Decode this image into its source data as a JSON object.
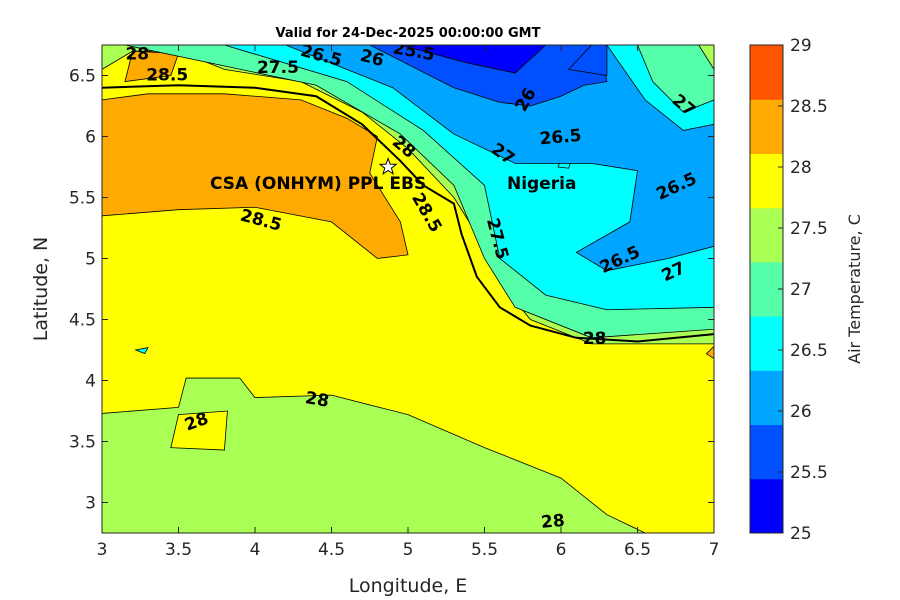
{
  "chart_data": {
    "type": "heatmap",
    "subtype": "filled-contour-map",
    "title": "Valid for 24-Dec-2025 00:00:00 GMT",
    "xlabel": "Longitude, E",
    "ylabel": "Latitude, N",
    "xlim": [
      3,
      7
    ],
    "ylim": [
      2.75,
      6.75
    ],
    "xticks": [
      "3",
      "3.5",
      "4",
      "4.5",
      "5",
      "5.5",
      "6",
      "6.5",
      "7"
    ],
    "yticks": [
      "3",
      "3.5",
      "4",
      "4.5",
      "5",
      "5.5",
      "6",
      "6.5"
    ],
    "colorbar": {
      "label": "Air Temperature, C",
      "range": [
        25,
        29
      ],
      "ticks": [
        "25",
        "25.5",
        "26",
        "26.5",
        "27",
        "27.5",
        "28",
        "28.5",
        "29"
      ],
      "colors": [
        "#0000ff",
        "#0050ff",
        "#00a5ff",
        "#00ffff",
        "#55ffaa",
        "#aaff55",
        "#ffff00",
        "#ffaa00",
        "#ff5500"
      ]
    },
    "regions": [
      {
        "level": "27.5-28",
        "color": "#aaff55",
        "points": [
          [
            3,
            2.75
          ],
          [
            7,
            2.75
          ],
          [
            7,
            6.75
          ],
          [
            3,
            6.75
          ]
        ]
      },
      {
        "level": "28-28.5",
        "color": "#ffff00",
        "points": [
          [
            3,
            3.73
          ],
          [
            3.5,
            3.78
          ],
          [
            3.55,
            4.02
          ],
          [
            3.9,
            4.02
          ],
          [
            4.0,
            3.86
          ],
          [
            4.5,
            3.88
          ],
          [
            5.0,
            3.72
          ],
          [
            5.5,
            3.45
          ],
          [
            6.0,
            3.2
          ],
          [
            6.3,
            2.9
          ],
          [
            6.55,
            2.75
          ],
          [
            7,
            2.75
          ],
          [
            7,
            4.3
          ],
          [
            6.2,
            4.3
          ],
          [
            5.8,
            4.5
          ],
          [
            5.6,
            4.8
          ],
          [
            5.45,
            5.2
          ],
          [
            5.3,
            5.5
          ],
          [
            5.0,
            5.9
          ],
          [
            4.7,
            6.2
          ],
          [
            4.3,
            6.45
          ],
          [
            3.8,
            6.55
          ],
          [
            3.5,
            6.7
          ],
          [
            3.2,
            6.7
          ],
          [
            3,
            6.55
          ]
        ]
      },
      {
        "level": "28-28.5",
        "color": "#ffff00",
        "points": [
          [
            3.45,
            3.45
          ],
          [
            3.8,
            3.43
          ],
          [
            3.82,
            3.75
          ],
          [
            3.5,
            3.72
          ]
        ]
      },
      {
        "level": "28.5-29",
        "color": "#ffaa00",
        "points": [
          [
            3,
            5.35
          ],
          [
            3.5,
            5.4
          ],
          [
            4.0,
            5.42
          ],
          [
            4.5,
            5.3
          ],
          [
            4.8,
            5.0
          ],
          [
            5.0,
            5.03
          ],
          [
            4.95,
            5.3
          ],
          [
            4.75,
            5.7
          ],
          [
            4.8,
            6.0
          ],
          [
            4.6,
            6.15
          ],
          [
            4.3,
            6.3
          ],
          [
            3.8,
            6.35
          ],
          [
            3.3,
            6.35
          ],
          [
            3,
            6.3
          ]
        ]
      },
      {
        "level": "28.5-29",
        "color": "#ffaa00",
        "points": [
          [
            3.15,
            6.45
          ],
          [
            3.45,
            6.5
          ],
          [
            3.5,
            6.68
          ],
          [
            3.2,
            6.7
          ]
        ]
      },
      {
        "level": "28.5-29",
        "color": "#ffaa00",
        "points": [
          [
            6.95,
            4.22
          ],
          [
            7,
            4.18
          ],
          [
            7,
            4.28
          ]
        ]
      },
      {
        "level": "27-27.5",
        "color": "#55ffaa",
        "points": [
          [
            3.15,
            6.75
          ],
          [
            4.4,
            6.42
          ],
          [
            4.95,
            6.02
          ],
          [
            5.3,
            5.6
          ],
          [
            5.5,
            5.0
          ],
          [
            5.7,
            4.6
          ],
          [
            6.2,
            4.35
          ],
          [
            7,
            4.42
          ],
          [
            7,
            6.55
          ],
          [
            6.9,
            6.75
          ]
        ]
      },
      {
        "level": "26.5-27",
        "color": "#00ffff",
        "points": [
          [
            3.8,
            6.75
          ],
          [
            4.6,
            6.45
          ],
          [
            5.1,
            6.05
          ],
          [
            5.5,
            5.6
          ],
          [
            5.6,
            5.0
          ],
          [
            5.9,
            4.7
          ],
          [
            6.3,
            4.58
          ],
          [
            7,
            4.6
          ],
          [
            7,
            6.3
          ],
          [
            6.8,
            6.2
          ],
          [
            6.6,
            6.45
          ],
          [
            6.5,
            6.75
          ]
        ]
      },
      {
        "level": "26-26.5",
        "color": "#00a5ff",
        "points": [
          [
            4.2,
            6.75
          ],
          [
            4.9,
            6.4
          ],
          [
            5.3,
            6.02
          ],
          [
            5.7,
            5.78
          ],
          [
            6.2,
            5.78
          ],
          [
            6.5,
            5.72
          ],
          [
            6.45,
            5.3
          ],
          [
            6.1,
            5.05
          ],
          [
            6.3,
            4.9
          ],
          [
            6.7,
            5.0
          ],
          [
            7,
            5.1
          ],
          [
            7,
            6.1
          ],
          [
            6.8,
            6.05
          ],
          [
            6.55,
            6.3
          ],
          [
            6.3,
            6.75
          ]
        ]
      },
      {
        "level": "25.5-26",
        "color": "#0050ff",
        "points": [
          [
            4.75,
            6.75
          ],
          [
            5.3,
            6.4
          ],
          [
            5.6,
            6.28
          ],
          [
            5.8,
            6.25
          ],
          [
            6.0,
            6.33
          ],
          [
            6.15,
            6.42
          ],
          [
            6.3,
            6.45
          ],
          [
            6.25,
            6.75
          ]
        ]
      },
      {
        "level": "25-25.5",
        "color": "#0000ff",
        "points": [
          [
            4.95,
            6.75
          ],
          [
            5.4,
            6.6
          ],
          [
            5.7,
            6.52
          ],
          [
            5.9,
            6.75
          ]
        ]
      },
      {
        "level": "25.5-26",
        "color": "#0050ff",
        "points": [
          [
            6.05,
            6.55
          ],
          [
            6.3,
            6.5
          ],
          [
            6.3,
            6.75
          ],
          [
            6.2,
            6.75
          ]
        ]
      },
      {
        "level": "26.5-27",
        "color": "#00ffff",
        "points": [
          [
            3.22,
            4.25
          ],
          [
            3.28,
            4.22
          ],
          [
            3.3,
            4.27
          ]
        ]
      },
      {
        "level": "26.5-27",
        "color": "#00ffff",
        "points": [
          [
            5.98,
            5.75
          ],
          [
            6.05,
            5.74
          ],
          [
            6.06,
            5.78
          ],
          [
            5.99,
            5.78
          ]
        ]
      }
    ],
    "coastline": [
      [
        3,
        6.4
      ],
      [
        3.5,
        6.42
      ],
      [
        4.0,
        6.4
      ],
      [
        4.4,
        6.33
      ],
      [
        4.7,
        6.1
      ],
      [
        4.95,
        5.8
      ],
      [
        5.1,
        5.6
      ],
      [
        5.3,
        5.45
      ],
      [
        5.35,
        5.2
      ],
      [
        5.45,
        4.85
      ],
      [
        5.6,
        4.6
      ],
      [
        5.8,
        4.45
      ],
      [
        6.1,
        4.35
      ],
      [
        6.5,
        4.32
      ],
      [
        7,
        4.38
      ]
    ],
    "contour_labels": [
      {
        "text": "28",
        "lon": 3.27,
        "lat": 6.6
      },
      {
        "text": "28.5",
        "lon": 3.4,
        "lat": 6.5
      },
      {
        "text": "27.5",
        "lon": 4.15,
        "lat": 6.52
      },
      {
        "text": "26.5",
        "lon": 4.45,
        "lat": 6.62
      },
      {
        "text": "26",
        "lon": 4.73,
        "lat": 6.6
      },
      {
        "text": "25.5",
        "lon": 4.98,
        "lat": 6.67
      },
      {
        "text": "26",
        "lon": 5.8,
        "lat": 6.28
      },
      {
        "text": "27",
        "lon": 6.78,
        "lat": 6.22
      },
      {
        "text": "26.5",
        "lon": 6.0,
        "lat": 5.95
      },
      {
        "text": "27",
        "lon": 5.6,
        "lat": 5.82
      },
      {
        "text": "28",
        "lon": 4.95,
        "lat": 5.88
      },
      {
        "text": "28.5",
        "lon": 5.0,
        "lat": 5.6
      },
      {
        "text": "26.5",
        "lon": 6.77,
        "lat": 5.55
      },
      {
        "text": "28.5",
        "lon": 4.03,
        "lat": 5.27
      },
      {
        "text": "27.5",
        "lon": 5.55,
        "lat": 5.15
      },
      {
        "text": "26.5",
        "lon": 6.4,
        "lat": 4.95
      },
      {
        "text": "27",
        "lon": 6.75,
        "lat": 4.85
      },
      {
        "text": "28",
        "lon": 6.22,
        "lat": 4.3
      },
      {
        "text": "28",
        "lon": 4.4,
        "lat": 3.8
      },
      {
        "text": "28",
        "lon": 3.63,
        "lat": 3.62
      },
      {
        "text": "28",
        "lon": 5.95,
        "lat": 2.8
      }
    ],
    "annotations": {
      "site_label": "CSA (ONHYM) PPL EBS",
      "site": {
        "lon": 4.87,
        "lat": 5.75
      },
      "country_label": "Nigeria"
    }
  }
}
